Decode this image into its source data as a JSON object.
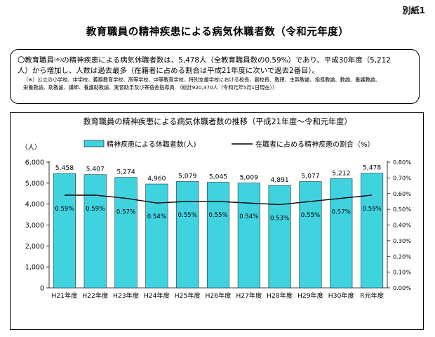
{
  "header": {
    "attachment_label": "別紙1",
    "title": "教育職員の精神疾患による病気休職者数（令和元年度）"
  },
  "summary": {
    "line1_a": "〇教育職員",
    "line1_mark": "(※)",
    "line1_b": "の精神疾患による病気休職者数は、5,478人（全教育職員数の0.59%）であり、平成30年度（5,212",
    "line2": "人）から増加し、人数は過去最多（在籍者に占める割合は平成21年度に次いで過去2番目）。",
    "footnote1": "（※）公立の小学校、中学校、義務教育学校、高等学校、中等教育学校、特別支援学校における校長、副校長、教頭、主幹教諭、指導教諭、教諭、養護教諭、",
    "footnote2": "栄養教諭、助教諭、講師、養護助教諭、実習助手及び寄宿舎指導員　（総計920,370人（令和元年5月1日現在））"
  },
  "chart_data": {
    "type": "bar",
    "title": "教育職員の精神疾患による病気休職者数の推移（平成21年度～令和元年度）",
    "categories": [
      "H21年度",
      "H22年度",
      "H23年度",
      "H24年度",
      "H25年度",
      "H26年度",
      "H27年度",
      "H28年度",
      "H29年度",
      "H30年度",
      "R元年度"
    ],
    "y_unit": "（人）",
    "ylim": [
      0,
      6000
    ],
    "y_ticks": [
      "0",
      "1,000",
      "2,000",
      "3,000",
      "4,000",
      "5,000",
      "6,000"
    ],
    "y2lim": [
      0,
      0.8
    ],
    "y2_ticks": [
      "0.00%",
      "0.10%",
      "0.20%",
      "0.30%",
      "0.40%",
      "0.50%",
      "0.60%",
      "0.70%",
      "0.80%"
    ],
    "series": [
      {
        "name": "精神疾患による休職者数(人)",
        "kind": "bar",
        "axis": "left",
        "color": "#3fd3e0",
        "values": [
          5458,
          5407,
          5274,
          4960,
          5079,
          5045,
          5009,
          4891,
          5077,
          5212,
          5478
        ],
        "labels": [
          "5,458",
          "5,407",
          "5,274",
          "4,960",
          "5,079",
          "5,045",
          "5,009",
          "4,891",
          "5,077",
          "5,212",
          "5,478"
        ]
      },
      {
        "name": "在職者に占める精神疾患の割合（%）",
        "kind": "line",
        "axis": "right",
        "color": "#000000",
        "values": [
          0.59,
          0.59,
          0.57,
          0.54,
          0.55,
          0.55,
          0.54,
          0.53,
          0.55,
          0.57,
          0.59
        ],
        "labels": [
          "0.59%",
          "0.59%",
          "0.57%",
          "0.54%",
          "0.55%",
          "0.55%",
          "0.54%",
          "0.53%",
          "0.55%",
          "0.57%",
          "0.59%"
        ]
      }
    ],
    "legend_position": "top",
    "grid": false
  }
}
